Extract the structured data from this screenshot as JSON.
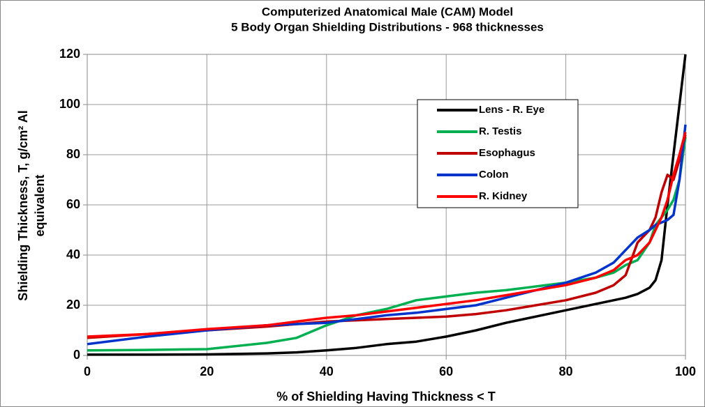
{
  "chart_data": {
    "type": "line",
    "title": "Computerized Anatomical Male (CAM) Model",
    "subtitle": "5 Body Organ Shielding Distributions - 968 thicknesses",
    "xlabel": "% of Shielding Having Thickness < T",
    "ylabel": [
      "Shielding Thickness, T, g/cm² Al",
      "equivalent"
    ],
    "x": [
      0,
      10,
      20,
      30,
      35,
      40,
      45,
      50,
      55,
      60,
      65,
      70,
      75,
      80,
      85,
      88,
      90,
      92,
      94,
      95,
      96,
      97,
      98,
      99,
      100
    ],
    "series": [
      {
        "name": "Lens - R. Eye",
        "color": "#000000",
        "values": [
          0.3,
          0.3,
          0.4,
          0.8,
          1.2,
          2,
          3,
          4.5,
          5.5,
          7.5,
          10,
          13,
          15.5,
          18,
          20.5,
          22,
          23,
          24.5,
          27,
          30,
          38,
          60,
          80,
          100,
          120
        ]
      },
      {
        "name": "R. Testis",
        "color": "#00b050",
        "values": [
          2,
          2.2,
          2.5,
          5,
          7,
          12,
          16,
          18.5,
          22,
          23.5,
          25,
          26,
          27.5,
          29,
          31,
          33,
          36,
          38,
          45,
          52,
          55,
          58,
          62,
          70,
          87
        ]
      },
      {
        "name": "Esophagus",
        "color": "#c00000",
        "values": [
          7,
          8.5,
          10,
          11.5,
          12.5,
          13.5,
          14,
          14.5,
          15,
          15.5,
          16.5,
          18,
          20,
          22,
          25,
          28,
          32,
          45,
          50,
          55,
          65,
          72,
          70,
          78,
          88
        ]
      },
      {
        "name": "Colon",
        "color": "#0033cc",
        "values": [
          4.5,
          7.5,
          10,
          12,
          12.5,
          13,
          14.5,
          16,
          17,
          18.5,
          20,
          23,
          26,
          29,
          33,
          37,
          42,
          47,
          50,
          52,
          53,
          54,
          56,
          70,
          92
        ]
      },
      {
        "name": "R. Kidney",
        "color": "#ff0000",
        "values": [
          7.5,
          8.5,
          10.5,
          12,
          13.5,
          15,
          16,
          17.5,
          19,
          20.5,
          22,
          24,
          26,
          28,
          31,
          34,
          38,
          40,
          45,
          50,
          55,
          62,
          72,
          80,
          89
        ]
      }
    ],
    "xlim": [
      0,
      100
    ],
    "xticks": [
      0,
      20,
      40,
      60,
      80,
      100
    ],
    "ylim": [
      0,
      120
    ],
    "yticks": [
      0,
      20,
      40,
      60,
      80,
      100,
      120
    ],
    "grid": true,
    "legend": "upper right"
  }
}
